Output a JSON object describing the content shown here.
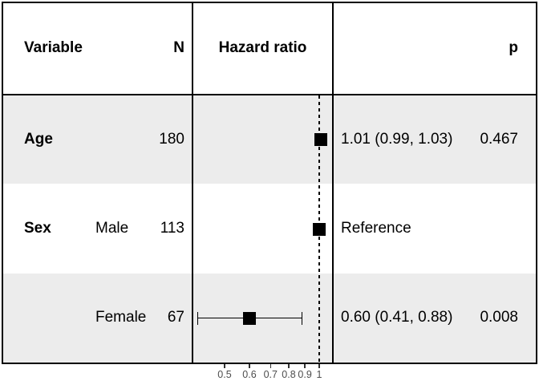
{
  "header": {
    "variable": "Variable",
    "n": "N",
    "hazard_ratio": "Hazard ratio",
    "p": "p"
  },
  "chart_data": {
    "type": "scatter",
    "variant": "forest-plot",
    "title": "",
    "xlabel": "Hazard ratio",
    "x_scale": "log",
    "x_ticks": [
      0.5,
      0.6,
      0.7,
      0.8,
      0.9,
      1
    ],
    "x_tick_labels": [
      "0.5",
      "0.6",
      "0.7",
      "0.8",
      "0.9",
      "1"
    ],
    "x_range_px_note": "log scale, reference line at 1",
    "reference_line_x": 1,
    "grid": false,
    "legend": false,
    "rows": [
      {
        "variable": "Age",
        "level": "",
        "n": "180",
        "hr": 1.01,
        "ci_low": 0.99,
        "ci_high": 1.03,
        "estimate_label": "1.01 (0.99, 1.03)",
        "p": "0.467",
        "band": "gray"
      },
      {
        "variable": "Sex",
        "level": "Male",
        "n": "113",
        "hr": 1.0,
        "ci_low": null,
        "ci_high": null,
        "estimate_label": "Reference",
        "p": "",
        "band": "white"
      },
      {
        "variable": "",
        "level": "Female",
        "n": "67",
        "hr": 0.6,
        "ci_low": 0.41,
        "ci_high": 0.88,
        "estimate_label": "0.60 (0.41, 0.88)",
        "p": "0.008",
        "band": "gray"
      }
    ]
  },
  "colors": {
    "band_gray": "#ececec",
    "border": "#000000",
    "marker": "#000000",
    "reference_line": "#000000",
    "axis_text": "#4d4d4d",
    "background": "#ffffff"
  }
}
